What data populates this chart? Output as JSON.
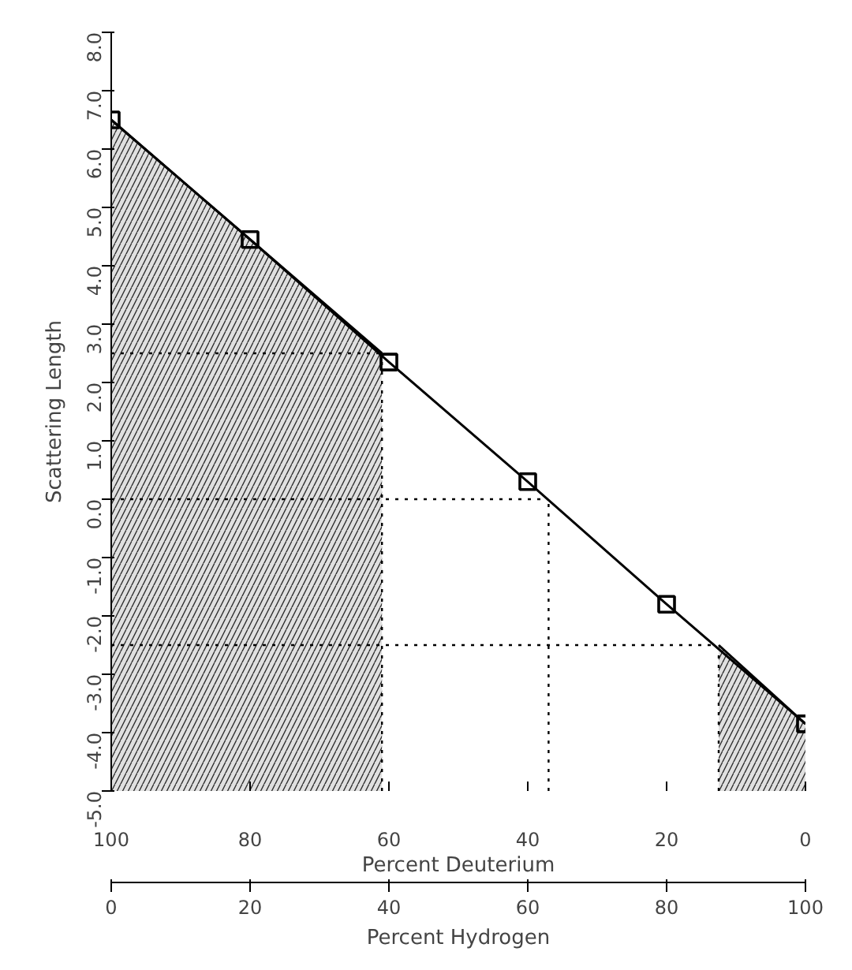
{
  "chart_data": {
    "type": "line",
    "xlabel": "Percent Hydrogen",
    "ylabel": "Scattering Length",
    "x2label": "Percent Deuterium",
    "x": [
      0,
      20,
      40,
      60,
      80,
      100
    ],
    "series": [
      {
        "color": "#000000",
        "values": [
          6.5,
          4.45,
          2.35,
          0.3,
          -1.8,
          -3.85
        ]
      },
      {
        "type": "line",
        "color": "#000000",
        "x": [
          0,
          20,
          39
        ],
        "values": [
          6.5,
          4.45,
          2.5
        ],
        "lower": [
          -5,
          -5,
          -5
        ],
        "upper": [
          6.5,
          4.45,
          2.5
        ],
        "marker": "none"
      },
      {
        "type": "line",
        "color": "#000000",
        "x": [
          87.5,
          100
        ],
        "values": [
          -2.5,
          -3.85
        ],
        "lower": [
          -5,
          -5
        ],
        "upper": [
          -2.5,
          -3.85
        ],
        "marker": "none"
      }
    ],
    "marker": "square",
    "line_style": "solid",
    "grid": false,
    "xlim": [
      0,
      100
    ],
    "xticks": [
      0,
      20,
      40,
      60,
      80,
      100
    ],
    "x2lim": [
      100,
      0
    ],
    "x2ticks": [
      100,
      80,
      60,
      40,
      20,
      0
    ],
    "ylim": [
      -5,
      8
    ],
    "yticks": [
      {
        "value": -5,
        "label": "-5.0"
      },
      {
        "value": -4,
        "label": "-4.0"
      },
      {
        "value": -3,
        "label": "-3.0"
      },
      {
        "value": -2,
        "label": "-2.0"
      },
      {
        "value": -1,
        "label": "-1.0"
      },
      {
        "value": 0,
        "label": "0.0"
      },
      {
        "value": 1,
        "label": "1.0"
      },
      {
        "value": 2,
        "label": "2.0"
      },
      {
        "value": 3,
        "label": "3.0"
      },
      {
        "value": 4,
        "label": "4.0"
      },
      {
        "value": 5,
        "label": "5.0"
      },
      {
        "value": 6,
        "label": "6.0"
      },
      {
        "value": 7,
        "label": "7.0"
      },
      {
        "value": 8,
        "label": "8.0"
      }
    ],
    "ref_lines": [
      {
        "axis": "y",
        "value": 2.5,
        "line_style": "dotted"
      },
      {
        "axis": "y",
        "value": 0.0,
        "line_style": "dotted"
      },
      {
        "axis": "y",
        "value": -2.5,
        "line_style": "dotted"
      },
      {
        "axis": "x",
        "value": 39,
        "line_style": "dotted"
      },
      {
        "axis": "x",
        "value": 63,
        "line_style": "dotted"
      },
      {
        "axis": "x",
        "value": 87.5,
        "line_style": "dotted"
      }
    ]
  }
}
